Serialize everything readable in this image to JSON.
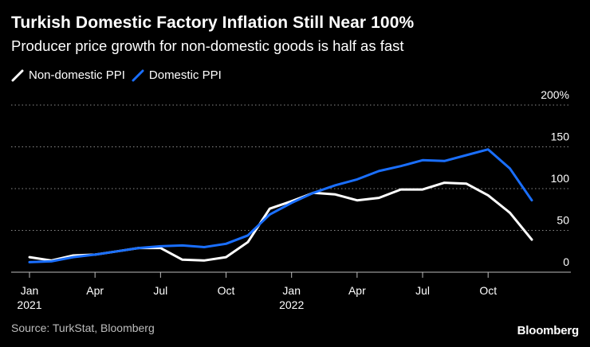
{
  "header": {
    "title": "Turkish Domestic Factory Inflation Still Near 100%",
    "subtitle": "Producer price growth for non-domestic goods is half as fast"
  },
  "legend": {
    "items": [
      {
        "label": "Non-domestic PPI",
        "color": "#ffffff"
      },
      {
        "label": "Domestic PPI",
        "color": "#1a6fff"
      }
    ]
  },
  "footer": {
    "source": "Source: TurkStat, Bloomberg",
    "brand": "Bloomberg"
  },
  "chart_data": {
    "type": "line",
    "title": "Turkish Domestic Factory Inflation Still Near 100%",
    "xlabel": "",
    "ylabel": "",
    "ylim": [
      0,
      200
    ],
    "y_ticks": [
      {
        "value": 200,
        "label": "200%"
      },
      {
        "value": 150,
        "label": "150"
      },
      {
        "value": 100,
        "label": "100"
      },
      {
        "value": 50,
        "label": "50"
      },
      {
        "value": 0,
        "label": "0"
      }
    ],
    "x_ticks": [
      {
        "index": 0,
        "label": "Jan",
        "year": "2021"
      },
      {
        "index": 3,
        "label": "Apr",
        "year": ""
      },
      {
        "index": 6,
        "label": "Jul",
        "year": ""
      },
      {
        "index": 9,
        "label": "Oct",
        "year": ""
      },
      {
        "index": 12,
        "label": "Jan",
        "year": "2022"
      },
      {
        "index": 15,
        "label": "Apr",
        "year": ""
      },
      {
        "index": 18,
        "label": "Jul",
        "year": ""
      },
      {
        "index": 21,
        "label": "Oct",
        "year": ""
      }
    ],
    "x": [
      "2021-01",
      "2021-02",
      "2021-03",
      "2021-04",
      "2021-05",
      "2021-06",
      "2021-07",
      "2021-08",
      "2021-09",
      "2021-10",
      "2021-11",
      "2021-12",
      "2022-01",
      "2022-02",
      "2022-03",
      "2022-04",
      "2022-05",
      "2022-06",
      "2022-07",
      "2022-08",
      "2022-09",
      "2022-10",
      "2022-11",
      "2022-12"
    ],
    "series": [
      {
        "name": "Non-domestic PPI",
        "color": "#ffffff",
        "values": [
          18,
          14,
          20,
          21,
          25,
          29,
          29,
          15,
          14,
          18,
          36,
          76,
          85,
          95,
          93,
          86,
          89,
          99,
          99,
          107,
          106,
          92,
          71,
          39
        ]
      },
      {
        "name": "Domestic PPI",
        "color": "#1a6fff",
        "values": [
          12,
          13,
          18,
          21,
          25,
          29,
          31,
          32,
          30,
          34,
          44,
          69,
          83,
          95,
          104,
          111,
          121,
          127,
          134,
          133,
          140,
          147,
          124,
          86
        ]
      }
    ]
  }
}
